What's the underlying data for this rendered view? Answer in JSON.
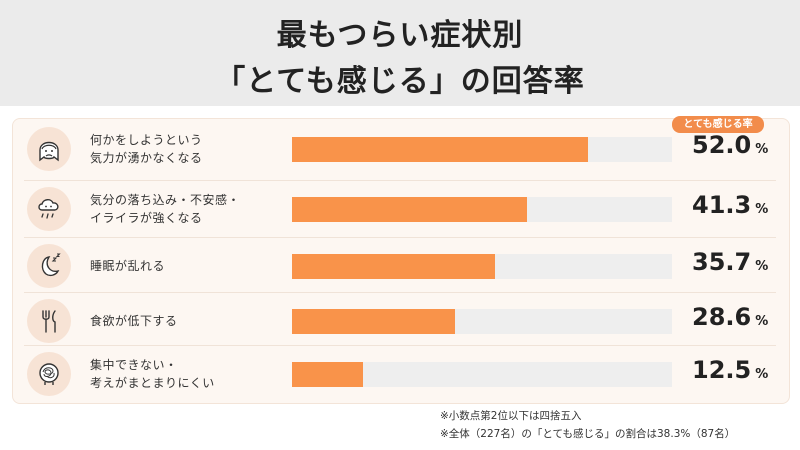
{
  "title": {
    "line1": "最もつらい症状別",
    "line2": "「とても感じる」の回答率"
  },
  "badge": "とても感じる率",
  "chart_data": {
    "type": "bar",
    "orientation": "horizontal",
    "unit": "%",
    "xlim": [
      0,
      100
    ],
    "categories": [
      "何かをしようという気力が湧かなくなる",
      "気分の落ち込み・不安感・イライラが強くなる",
      "睡眠が乱れる",
      "食欲が低下する",
      "集中できない・考えがまとまりにくい"
    ],
    "values": [
      52.0,
      41.3,
      35.7,
      28.6,
      12.5
    ],
    "colors": {
      "bar": "#f9934a",
      "track": "#eeeeee",
      "badge": "#f28c4b"
    }
  },
  "rows": [
    {
      "line1": "何かをしようという",
      "line2": "気力が湧かなくなる",
      "value": "52.0",
      "unit": "%",
      "icon": "sad-face-icon"
    },
    {
      "line1": "気分の落ち込み・不安感・",
      "line2": "イライラが強くなる",
      "value": "41.3",
      "unit": "%",
      "icon": "rain-cloud-icon"
    },
    {
      "line1": "睡眠が乱れる",
      "line2": "",
      "value": "35.7",
      "unit": "%",
      "icon": "moon-sleep-icon"
    },
    {
      "line1": "食欲が低下する",
      "line2": "",
      "value": "28.6",
      "unit": "%",
      "icon": "fork-knife-icon"
    },
    {
      "line1": "集中できない・",
      "line2": "考えがまとまりにくい",
      "value": "12.5",
      "unit": "%",
      "icon": "tangled-head-icon"
    }
  ],
  "notes": {
    "note1": "※小数点第2位以下は四捨五入",
    "note2": "※全体（227名）の「とても感じる」の割合は38.3%（87名）"
  }
}
